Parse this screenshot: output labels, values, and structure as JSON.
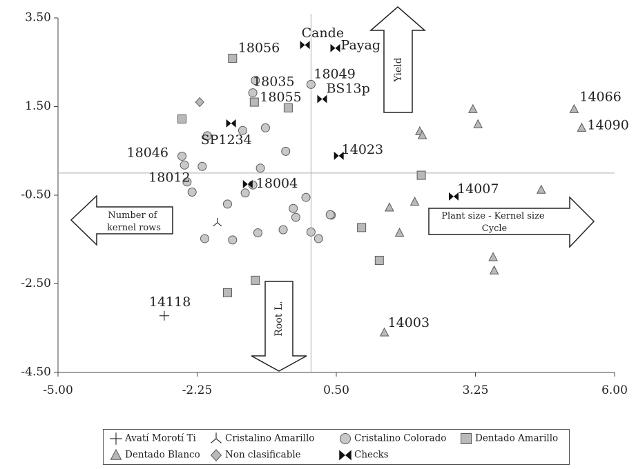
{
  "chart_data": {
    "type": "scatter",
    "xlim": [
      -5,
      6
    ],
    "ylim": [
      -4.5,
      3.5
    ],
    "x_ticks": [
      "-5.00",
      "-2.25",
      "0.50",
      "3.25",
      "6.00"
    ],
    "y_ticks": [
      "3.50",
      "1.50",
      "-0.50",
      "-2.50",
      "-4.50"
    ],
    "x_tick_values": [
      -5,
      -2.25,
      0.5,
      3.25,
      6
    ],
    "y_tick_values": [
      3.5,
      1.5,
      -0.5,
      -2.5,
      -4.5
    ],
    "reference_lines": {
      "x": 0.0,
      "y": 0.0
    },
    "grid": false,
    "legend_position": "bottom",
    "legend": [
      {
        "group": "avati",
        "label": "Avatí Morotí Ti"
      },
      {
        "group": "crist_am",
        "label": "Cristalino Amarillo"
      },
      {
        "group": "crist_col",
        "label": "Cristalino Colorado"
      },
      {
        "group": "dent_am",
        "label": "Dentado Amarillo"
      },
      {
        "group": "dent_bl",
        "label": "Dentado Blanco"
      },
      {
        "group": "nonclas",
        "label": "Non clasificable"
      },
      {
        "group": "checks",
        "label": "Checks"
      }
    ],
    "series": [
      {
        "group": "avati",
        "points": [
          {
            "x": -2.9,
            "y": -3.22,
            "label": "14118"
          }
        ]
      },
      {
        "group": "crist_am",
        "points": [
          {
            "x": -1.85,
            "y": -1.12
          }
        ]
      },
      {
        "group": "crist_col",
        "points": [
          {
            "x": -1.1,
            "y": 2.09
          },
          {
            "x": -0.9,
            "y": 1.02
          },
          {
            "x": -1.35,
            "y": 0.96
          },
          {
            "x": -1.0,
            "y": 0.11
          },
          {
            "x": -2.05,
            "y": 0.84
          },
          {
            "x": -2.15,
            "y": 0.15
          },
          {
            "x": -0.5,
            "y": 0.49
          },
          {
            "x": -2.45,
            "y": -0.2
          },
          {
            "x": -2.35,
            "y": -0.43
          },
          {
            "x": -1.15,
            "y": -0.27
          },
          {
            "x": -1.3,
            "y": -0.45
          },
          {
            "x": -0.1,
            "y": -0.55
          },
          {
            "x": -1.65,
            "y": -0.7
          },
          {
            "x": -0.35,
            "y": -0.8
          },
          {
            "x": -0.3,
            "y": -1.0
          },
          {
            "x": 0.4,
            "y": -0.95
          },
          {
            "x": 0.38,
            "y": -0.94
          },
          {
            "x": -1.05,
            "y": -1.35
          },
          {
            "x": -0.55,
            "y": -1.28
          },
          {
            "x": 0.0,
            "y": -1.33
          },
          {
            "x": 0.15,
            "y": -1.48
          },
          {
            "x": -2.1,
            "y": -1.48
          },
          {
            "x": -1.55,
            "y": -1.51
          },
          {
            "x": -1.15,
            "y": 1.81,
            "label": "18035"
          },
          {
            "x": 0.0,
            "y": 2.0,
            "label": "18049"
          },
          {
            "x": -2.55,
            "y": 0.38,
            "label": "18046"
          },
          {
            "x": -2.5,
            "y": 0.18,
            "label": "18012"
          }
        ]
      },
      {
        "group": "dent_am",
        "points": [
          {
            "x": -1.55,
            "y": 2.59,
            "label": "18056"
          },
          {
            "x": -1.12,
            "y": 1.6,
            "label": "18055"
          },
          {
            "x": -0.45,
            "y": 1.47
          },
          {
            "x": -2.55,
            "y": 1.22
          },
          {
            "x": 2.18,
            "y": -0.05
          },
          {
            "x": 1.0,
            "y": -1.23
          },
          {
            "x": 1.35,
            "y": -1.97
          },
          {
            "x": -1.65,
            "y": -2.7
          },
          {
            "x": -1.1,
            "y": -2.42
          }
        ]
      },
      {
        "group": "dent_bl",
        "points": [
          {
            "x": 3.2,
            "y": 1.44
          },
          {
            "x": 3.3,
            "y": 1.1
          },
          {
            "x": 2.15,
            "y": 0.94
          },
          {
            "x": 2.2,
            "y": 0.85
          },
          {
            "x": 1.55,
            "y": -0.78
          },
          {
            "x": 2.05,
            "y": -0.65
          },
          {
            "x": 1.75,
            "y": -1.35
          },
          {
            "x": 4.55,
            "y": -0.38
          },
          {
            "x": 3.6,
            "y": -1.9
          },
          {
            "x": 3.62,
            "y": -2.2
          },
          {
            "x": 5.2,
            "y": 1.44,
            "label": "14066"
          },
          {
            "x": 5.35,
            "y": 1.02,
            "label": "14090"
          },
          {
            "x": 1.45,
            "y": -3.6,
            "label": "14003"
          }
        ]
      },
      {
        "group": "nonclas",
        "points": [
          {
            "x": -2.2,
            "y": 1.6
          }
        ]
      },
      {
        "group": "checks",
        "points": [
          {
            "x": -0.12,
            "y": 2.89,
            "label": "Cande"
          },
          {
            "x": 0.48,
            "y": 2.82,
            "label": "Payag"
          },
          {
            "x": 0.22,
            "y": 1.67,
            "label": "BS13p"
          },
          {
            "x": -1.58,
            "y": 1.12,
            "label": "SP1234"
          },
          {
            "x": 0.55,
            "y": 0.39,
            "label": "14023"
          },
          {
            "x": -1.25,
            "y": -0.25,
            "label": "18004"
          },
          {
            "x": 2.82,
            "y": -0.53,
            "label": "14007"
          }
        ]
      }
    ],
    "annotations": [
      {
        "key": "yield",
        "text": "Yield"
      },
      {
        "key": "root",
        "text": "Root L."
      },
      {
        "key": "rows",
        "text": "Number of kernel rows"
      },
      {
        "key": "plant",
        "text": "Plant size - Kernel size Cycle"
      }
    ]
  }
}
